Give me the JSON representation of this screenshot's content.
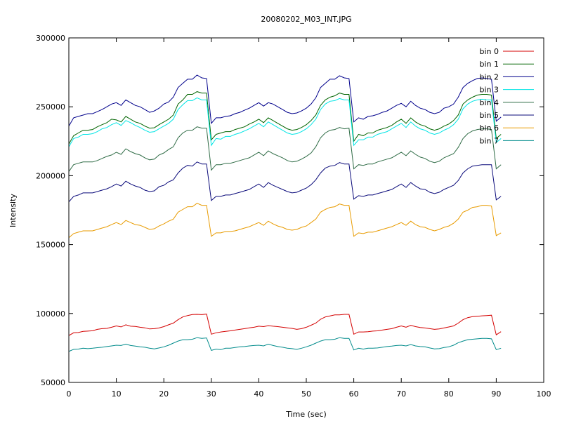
{
  "chart_data": {
    "type": "line",
    "title": "20080202_M03_INT.JPG",
    "xlabel": "Time (sec)",
    "ylabel": "Intensity",
    "xlim": [
      0,
      100
    ],
    "ylim": [
      50000,
      300000
    ],
    "xticks": [
      0,
      10,
      20,
      30,
      40,
      50,
      60,
      70,
      80,
      90,
      100
    ],
    "yticks": [
      50000,
      100000,
      150000,
      200000,
      250000,
      300000
    ],
    "grid": false,
    "legend_position": "top-right",
    "x": [
      0,
      1,
      2,
      3,
      4,
      5,
      6,
      7,
      8,
      9,
      10,
      11,
      12,
      13,
      14,
      15,
      16,
      17,
      18,
      19,
      20,
      21,
      22,
      23,
      24,
      25,
      26,
      27,
      28,
      29,
      30,
      31,
      32,
      33,
      34,
      35,
      36,
      37,
      38,
      39,
      40,
      41,
      42,
      43,
      44,
      45,
      46,
      47,
      48,
      49,
      50,
      51,
      52,
      53,
      54,
      55,
      56,
      57,
      58,
      59,
      60,
      61,
      62,
      63,
      64,
      65,
      66,
      67,
      68,
      69,
      70,
      71,
      72,
      73,
      74,
      75,
      76,
      77,
      78,
      79,
      80,
      81,
      82,
      83,
      84,
      85,
      86,
      87,
      88,
      89,
      90,
      91
    ],
    "series": [
      {
        "name": "bin 0",
        "color": "#d40000",
        "values": [
          84000,
          86000,
          86200,
          87000,
          87200,
          87500,
          88500,
          89000,
          89200,
          90000,
          91000,
          90300,
          91800,
          90800,
          90600,
          90000,
          89600,
          88800,
          89000,
          89500,
          90500,
          91800,
          93000,
          95500,
          97500,
          98500,
          99300,
          99400,
          99200,
          99600,
          85000,
          86000,
          86600,
          87000,
          87400,
          88000,
          88500,
          89000,
          89600,
          90000,
          90800,
          90500,
          91200,
          90800,
          90500,
          90000,
          89600,
          89200,
          88500,
          89000,
          90000,
          91500,
          93000,
          95800,
          97500,
          98200,
          99000,
          99000,
          99400,
          99400,
          85000,
          86600,
          86600,
          86800,
          87200,
          87400,
          88000,
          88500,
          89000,
          90000,
          91000,
          90000,
          91400,
          90500,
          89800,
          89500,
          89000,
          88500,
          88800,
          89500,
          90200,
          91000,
          93000,
          95500,
          97000,
          97700,
          98000,
          98300,
          98500,
          98800,
          84500,
          86800
        ]
      },
      {
        "name": "bin 1",
        "color": "#006400",
        "values": [
          223000,
          229000,
          231000,
          233000,
          233000,
          233500,
          235500,
          237000,
          238500,
          241000,
          240500,
          239000,
          243000,
          241000,
          239000,
          238000,
          236000,
          234500,
          234800,
          237000,
          239000,
          241000,
          244000,
          252000,
          255000,
          259000,
          259000,
          261000,
          260000,
          260000,
          226000,
          230000,
          231000,
          232000,
          232000,
          233500,
          234500,
          235500,
          237500,
          239000,
          241000,
          238500,
          242000,
          240000,
          238000,
          236000,
          234000,
          233000,
          233500,
          235000,
          237000,
          240000,
          244000,
          251000,
          255000,
          257000,
          258000,
          260000,
          259000,
          259000,
          225000,
          230000,
          229000,
          231000,
          231000,
          233000,
          234000,
          235000,
          236500,
          239000,
          241000,
          238000,
          242000,
          239000,
          237000,
          236000,
          234000,
          233000,
          234000,
          236000,
          237500,
          240000,
          244000,
          252000,
          255000,
          257000,
          258500,
          259000,
          259000,
          258500,
          227000,
          230000
        ]
      },
      {
        "name": "bin 2",
        "color": "#00008b",
        "values": [
          236000,
          242000,
          243000,
          244000,
          245000,
          245000,
          246500,
          248000,
          250000,
          252000,
          253000,
          251000,
          255000,
          253000,
          251000,
          250000,
          248000,
          246000,
          247000,
          249000,
          252000,
          253500,
          257000,
          264000,
          267000,
          270000,
          270000,
          273000,
          271000,
          270500,
          238000,
          242000,
          242000,
          243000,
          243500,
          245000,
          246000,
          247500,
          249000,
          251000,
          253000,
          250500,
          253000,
          252000,
          250000,
          248000,
          246000,
          245000,
          245500,
          247000,
          249000,
          252000,
          256500,
          264000,
          267000,
          270000,
          270000,
          272500,
          271000,
          270500,
          239000,
          242000,
          241000,
          243000,
          243500,
          244500,
          246000,
          247000,
          249000,
          251000,
          252500,
          250000,
          254000,
          251000,
          249000,
          248000,
          246000,
          245000,
          246000,
          249000,
          250000,
          252000,
          257000,
          264000,
          267000,
          269000,
          270500,
          271000,
          270500,
          270000,
          239500,
          242500
        ]
      },
      {
        "name": "bin 3",
        "color": "#00e5e5",
        "values": [
          221000,
          227000,
          228000,
          230000,
          230000,
          230500,
          232000,
          234000,
          235000,
          237000,
          238500,
          236500,
          240000,
          238500,
          236500,
          235000,
          233000,
          231500,
          232000,
          234000,
          236000,
          238000,
          241000,
          248000,
          251500,
          254500,
          254500,
          256500,
          255000,
          255000,
          222000,
          227000,
          226500,
          228500,
          228500,
          230000,
          231000,
          232500,
          234000,
          236000,
          238000,
          235500,
          239000,
          237000,
          235000,
          233000,
          231000,
          230000,
          230500,
          232000,
          234000,
          237000,
          241000,
          248000,
          252000,
          254000,
          254500,
          256000,
          255000,
          255000,
          222000,
          226000,
          226000,
          228000,
          228000,
          230000,
          231000,
          232000,
          234000,
          236000,
          238000,
          235000,
          239000,
          236000,
          234000,
          233000,
          231000,
          230000,
          231000,
          233000,
          234500,
          237000,
          241000,
          248500,
          252000,
          254000,
          255000,
          255500,
          255000,
          255000,
          224000,
          227000
        ]
      },
      {
        "name": "bin 4",
        "color": "#2e6b45",
        "values": [
          203000,
          208000,
          209000,
          210000,
          210000,
          210000,
          211000,
          212500,
          214000,
          215000,
          217000,
          215500,
          219500,
          217500,
          216000,
          215000,
          213000,
          211500,
          212000,
          215000,
          216500,
          219000,
          221000,
          227500,
          231000,
          233000,
          233000,
          235500,
          234500,
          234500,
          204000,
          208000,
          208000,
          209000,
          209000,
          210000,
          211000,
          212000,
          213000,
          215000,
          217000,
          214500,
          218000,
          216000,
          214500,
          213000,
          211000,
          210000,
          210500,
          212000,
          214000,
          216500,
          221000,
          227500,
          231000,
          233000,
          233500,
          235000,
          234000,
          234500,
          205000,
          208000,
          207500,
          208500,
          208500,
          210000,
          211000,
          212000,
          213000,
          215000,
          217000,
          214500,
          218000,
          215500,
          213500,
          212500,
          210500,
          209500,
          210500,
          213000,
          214500,
          216000,
          220500,
          227000,
          230500,
          232500,
          233500,
          234000,
          234000,
          233500,
          205000,
          208000
        ]
      },
      {
        "name": "bin 5",
        "color": "#0a0a7a",
        "values": [
          181000,
          185000,
          186000,
          187500,
          187500,
          187500,
          188500,
          189500,
          190500,
          192000,
          194000,
          192500,
          196000,
          194000,
          192500,
          191500,
          189500,
          188500,
          189000,
          192000,
          193000,
          195500,
          197000,
          202000,
          205500,
          207500,
          207000,
          210000,
          208500,
          208500,
          182000,
          185000,
          185000,
          186000,
          186000,
          187000,
          188000,
          189000,
          190000,
          192000,
          194000,
          191500,
          195000,
          193000,
          191500,
          190000,
          188500,
          187500,
          188000,
          189500,
          191000,
          193500,
          197000,
          202000,
          205500,
          207000,
          207500,
          209500,
          208500,
          208500,
          183000,
          185500,
          185000,
          186000,
          186000,
          187000,
          188000,
          189000,
          190000,
          192000,
          194000,
          191500,
          195000,
          192500,
          190500,
          190000,
          188000,
          187000,
          188000,
          190000,
          191500,
          193000,
          196500,
          202000,
          205000,
          207000,
          207500,
          208000,
          208000,
          208000,
          182500,
          185000
        ]
      },
      {
        "name": "bin 6",
        "color": "#e89b00",
        "values": [
          155000,
          158000,
          159000,
          160000,
          160000,
          160000,
          161000,
          162000,
          163000,
          164500,
          166000,
          164500,
          167500,
          166000,
          164500,
          164000,
          162500,
          161000,
          161500,
          163500,
          165000,
          167000,
          168500,
          173500,
          175500,
          177500,
          177500,
          180000,
          178500,
          178500,
          156000,
          158500,
          158500,
          159500,
          159500,
          160000,
          161000,
          162000,
          163000,
          164500,
          166000,
          164000,
          167000,
          165000,
          163500,
          162500,
          161000,
          160500,
          161000,
          162500,
          163500,
          166000,
          168500,
          173500,
          175500,
          177000,
          177500,
          179500,
          178500,
          178500,
          156000,
          158500,
          158000,
          159000,
          159000,
          160000,
          161000,
          162000,
          163000,
          164500,
          166000,
          164000,
          167000,
          164500,
          163000,
          162500,
          161000,
          160000,
          161000,
          162500,
          163500,
          165500,
          168500,
          173500,
          175000,
          177000,
          177500,
          178500,
          178500,
          178000,
          156500,
          158500
        ]
      },
      {
        "name": "bin 7",
        "color": "#008b8b",
        "values": [
          72500,
          74000,
          74200,
          74800,
          74500,
          74800,
          75200,
          75500,
          76000,
          76500,
          77000,
          76800,
          77800,
          76800,
          76300,
          75800,
          75500,
          74800,
          74300,
          75000,
          75800,
          77000,
          78500,
          80000,
          81000,
          81000,
          81300,
          82500,
          82000,
          82300,
          73200,
          74200,
          73800,
          74800,
          74800,
          75300,
          75800,
          76000,
          76500,
          76800,
          77000,
          76500,
          77800,
          76800,
          76000,
          75500,
          74800,
          74500,
          74000,
          74800,
          75800,
          77000,
          78500,
          80000,
          81000,
          81000,
          81300,
          82500,
          82000,
          82000,
          73500,
          74800,
          74200,
          74800,
          74800,
          75000,
          75500,
          76000,
          76300,
          76800,
          77000,
          76500,
          77500,
          76500,
          76000,
          75800,
          75000,
          74300,
          74500,
          75300,
          75800,
          77000,
          78800,
          80000,
          81000,
          81300,
          81600,
          82000,
          82000,
          81600,
          73800,
          74800
        ]
      }
    ]
  }
}
